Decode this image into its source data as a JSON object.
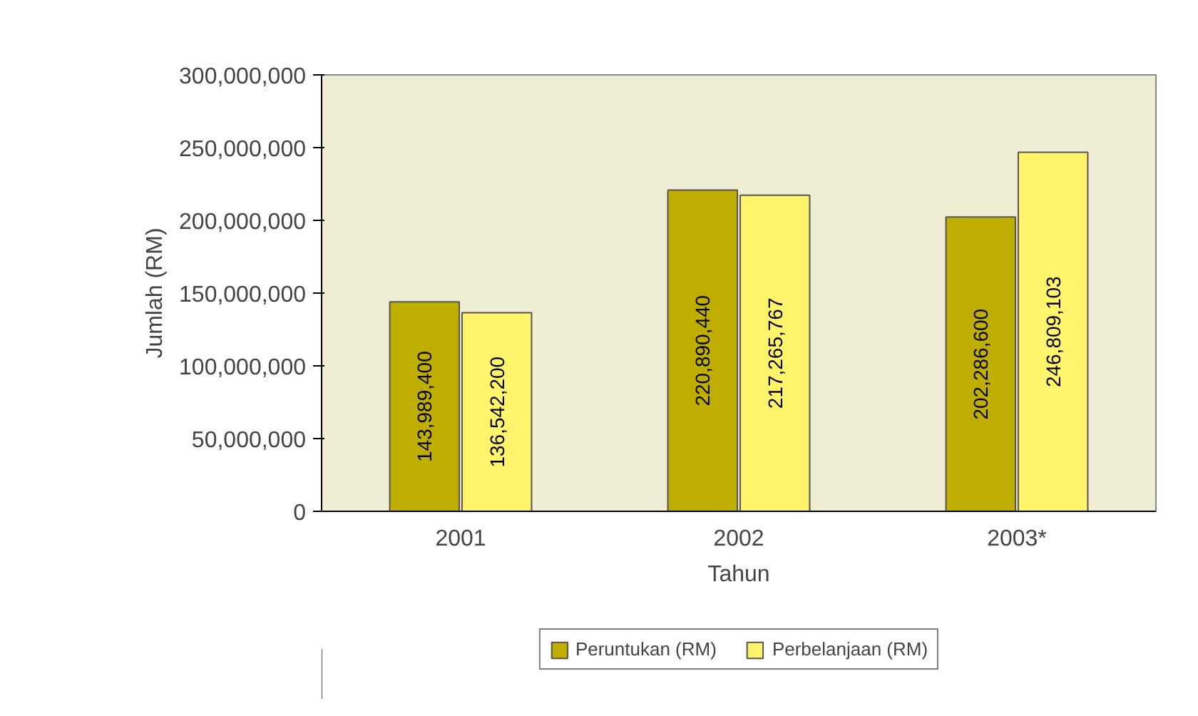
{
  "chart_data": {
    "type": "bar",
    "xlabel": "Tahun",
    "ylabel": "Jumlah (RM)",
    "categories": [
      "2001",
      "2002",
      "2003*"
    ],
    "series": [
      {
        "name": "Peruntukan (RM)",
        "color": "#bfae00",
        "values": [
          143989400,
          220890440,
          202286600
        ],
        "value_labels": [
          "143,989,400",
          "220,890,440",
          "202,286,600"
        ]
      },
      {
        "name": "Perbelanjaan (RM)",
        "color": "#fff46a",
        "values": [
          136542200,
          217265767,
          246809103
        ],
        "value_labels": [
          "136,542,200",
          "217,265,767",
          "246,809,103"
        ]
      }
    ],
    "ylim": [
      0,
      300000000
    ],
    "yticks": [
      {
        "value": 0,
        "label": "0"
      },
      {
        "value": 50000000,
        "label": "50,000,000"
      },
      {
        "value": 100000000,
        "label": "100,000,000"
      },
      {
        "value": 150000000,
        "label": "150,000,000"
      },
      {
        "value": 200000000,
        "label": "200,000,000"
      },
      {
        "value": 250000000,
        "label": "250,000,000"
      },
      {
        "value": 300000000,
        "label": "300,000,000"
      }
    ],
    "grid": false,
    "legend": "bottom"
  }
}
